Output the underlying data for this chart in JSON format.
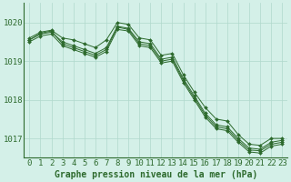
{
  "x": [
    0,
    1,
    2,
    3,
    4,
    5,
    6,
    7,
    8,
    9,
    10,
    11,
    12,
    13,
    14,
    15,
    16,
    17,
    18,
    19,
    20,
    21,
    22,
    23
  ],
  "series": [
    [
      1019.6,
      1019.75,
      1019.8,
      1019.6,
      1019.55,
      1019.45,
      1019.35,
      1019.55,
      1020.0,
      1019.95,
      1019.6,
      1019.55,
      1019.15,
      1019.2,
      1018.65,
      1018.2,
      1017.8,
      1017.5,
      1017.45,
      1017.1,
      1016.85,
      1016.82,
      1017.0,
      1017.0
    ],
    [
      1019.55,
      1019.7,
      1019.75,
      1019.5,
      1019.4,
      1019.3,
      1019.2,
      1019.35,
      1019.9,
      1019.85,
      1019.5,
      1019.45,
      1019.05,
      1019.1,
      1018.55,
      1018.1,
      1017.65,
      1017.35,
      1017.3,
      1017.0,
      1016.75,
      1016.72,
      1016.9,
      1016.95
    ],
    [
      1019.5,
      1019.65,
      1019.7,
      1019.4,
      1019.3,
      1019.2,
      1019.1,
      1019.25,
      1019.82,
      1019.78,
      1019.4,
      1019.35,
      1018.95,
      1019.0,
      1018.45,
      1018.0,
      1017.55,
      1017.25,
      1017.2,
      1016.9,
      1016.65,
      1016.62,
      1016.8,
      1016.85
    ],
    [
      1019.55,
      1019.72,
      1019.78,
      1019.45,
      1019.35,
      1019.25,
      1019.15,
      1019.3,
      1019.88,
      1019.82,
      1019.45,
      1019.4,
      1019.0,
      1019.05,
      1018.5,
      1018.05,
      1017.6,
      1017.3,
      1017.25,
      1016.95,
      1016.7,
      1016.68,
      1016.85,
      1016.9
    ]
  ],
  "line_color": "#2d6a2d",
  "marker_color": "#2d6a2d",
  "bg_color": "#d4f0e8",
  "grid_color": "#b0d8cc",
  "axis_color": "#2d6a2d",
  "title": "Graphe pression niveau de la mer (hPa)",
  "ylim": [
    1016.5,
    1020.5
  ],
  "yticks": [
    1017,
    1018,
    1019,
    1020
  ],
  "xticks": [
    0,
    1,
    2,
    3,
    4,
    5,
    6,
    7,
    8,
    9,
    10,
    11,
    12,
    13,
    14,
    15,
    16,
    17,
    18,
    19,
    20,
    21,
    22,
    23
  ],
  "tick_fontsize": 6.5,
  "title_fontsize": 7.0,
  "figwidth": 3.2,
  "figheight": 2.0,
  "dpi": 100
}
